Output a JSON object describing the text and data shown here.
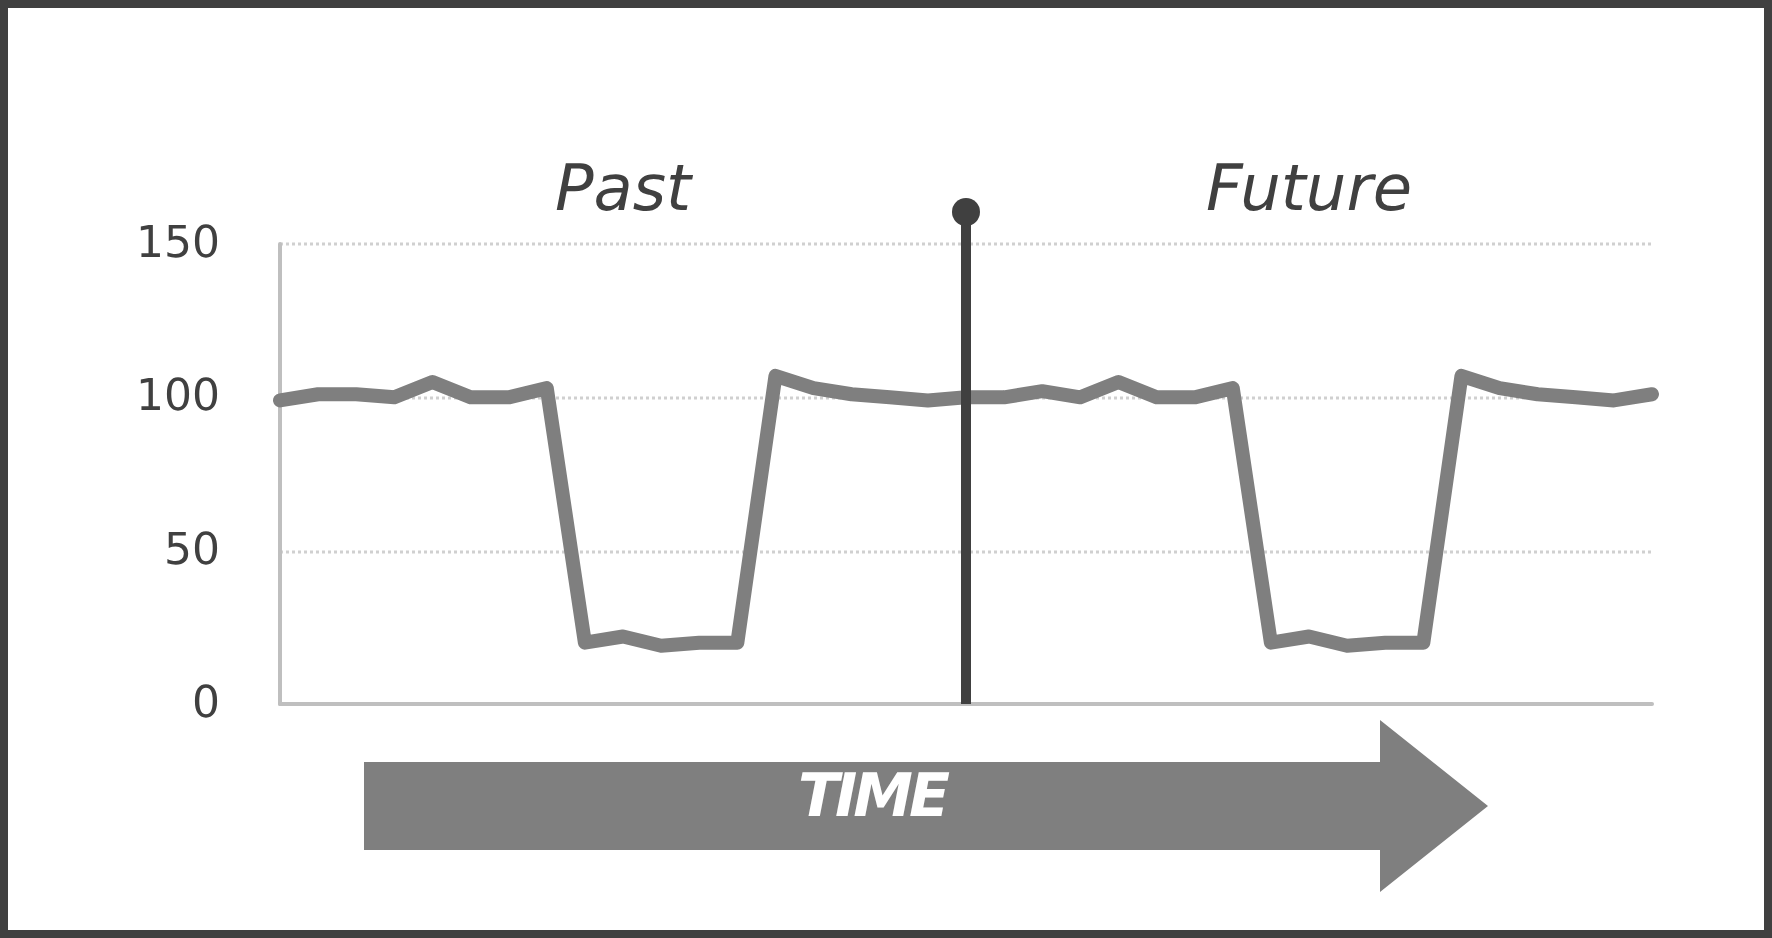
{
  "chart_data": {
    "type": "line",
    "xlabel": "TIME",
    "annotations": [
      "Past",
      "Future"
    ],
    "categories": [
      null,
      null,
      null,
      null,
      null,
      null,
      null,
      null,
      null,
      null,
      null,
      null,
      null,
      null,
      null,
      null,
      null,
      null,
      null,
      null,
      null,
      null,
      null,
      null,
      null,
      null,
      null,
      null,
      null,
      null,
      null,
      null,
      null,
      null,
      null,
      null,
      null
    ],
    "series": [
      {
        "color": "#7f7f7f",
        "values": [
          99,
          101,
          101,
          100,
          105,
          100,
          100,
          103,
          20,
          22,
          19,
          20,
          20,
          107,
          103,
          101,
          100,
          99,
          100,
          100,
          102,
          100,
          105,
          100,
          100,
          103,
          20,
          22,
          19,
          20,
          20,
          107,
          103,
          101,
          100,
          99,
          101
        ]
      }
    ],
    "ylim": [
      0,
      150
    ],
    "yticks": [
      0,
      50,
      100,
      150
    ],
    "grid": "y",
    "line_style": "solid",
    "tick_labels": "y"
  }
}
